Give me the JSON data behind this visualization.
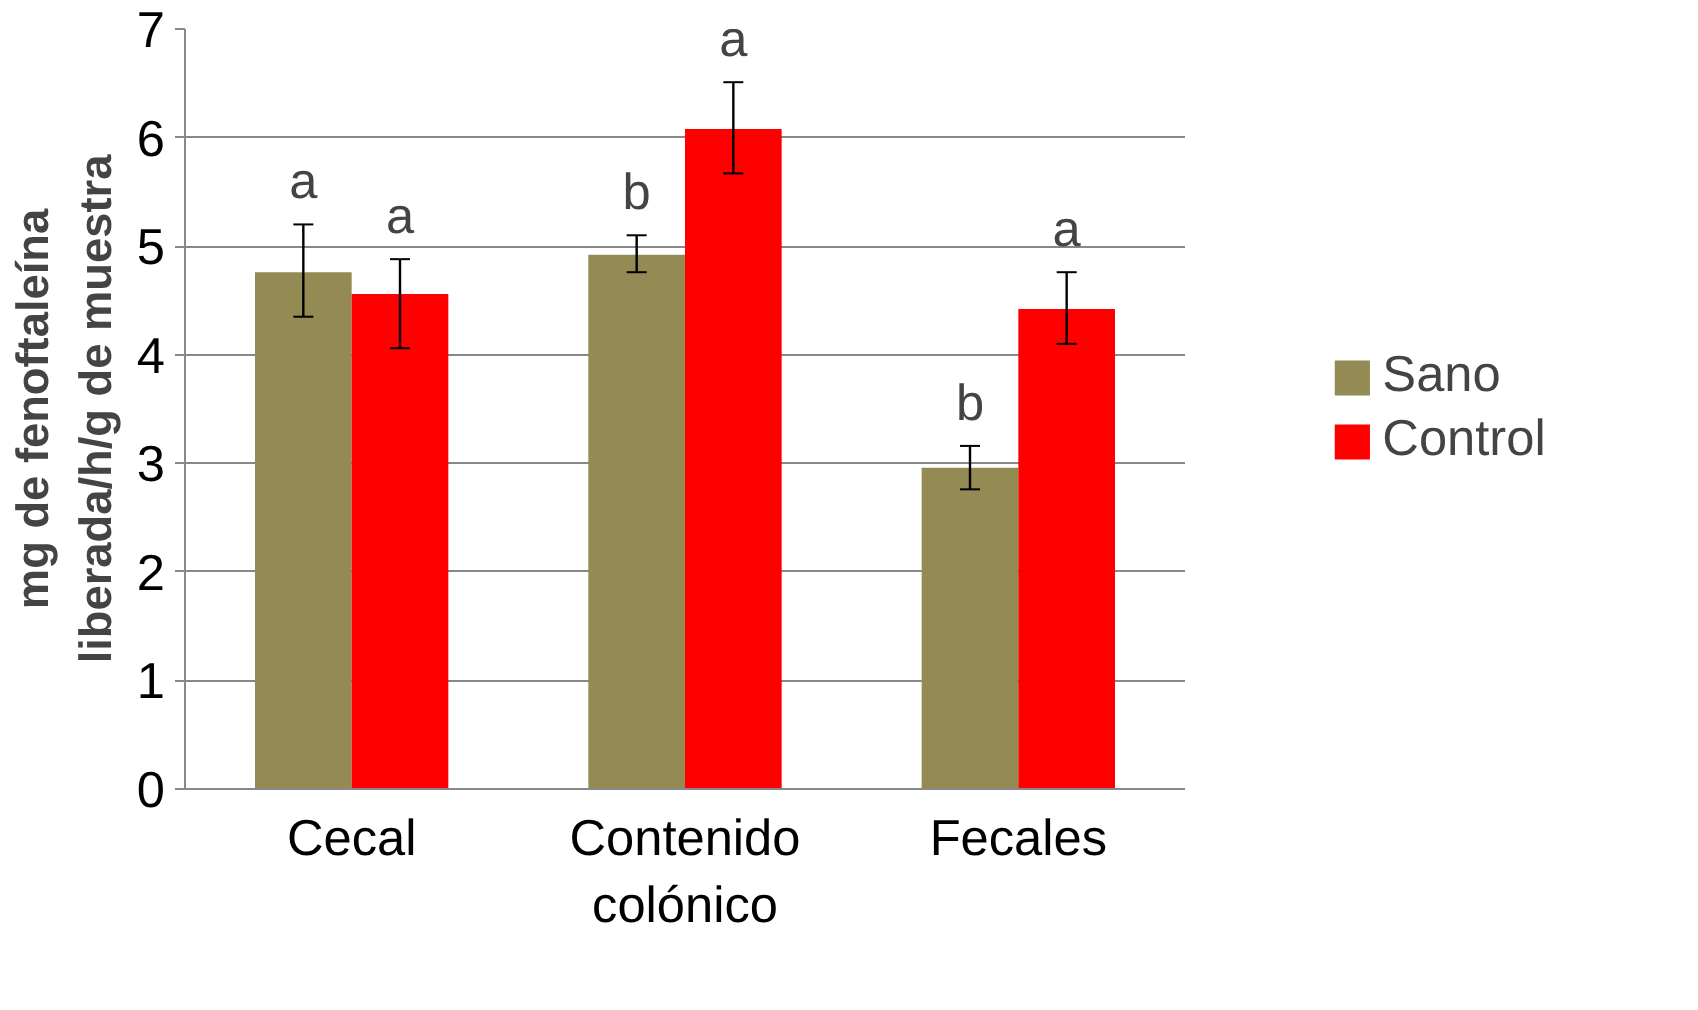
{
  "chart_data": {
    "type": "bar",
    "ylabel": "mg de fenoftaleína\nliberada/h/g de muestra",
    "categories": [
      "Cecal",
      "Contenido\ncolónico",
      "Fecales"
    ],
    "series": [
      {
        "name": "Sano",
        "color": "#948a54",
        "values": [
          4.76,
          4.92,
          2.96
        ],
        "errors": [
          [
            4.35,
            5.2
          ],
          [
            4.76,
            5.1
          ],
          [
            2.76,
            3.16
          ]
        ]
      },
      {
        "name": "Control",
        "color": "#ff0000",
        "values": [
          4.56,
          6.08,
          4.42
        ],
        "errors": [
          [
            4.06,
            4.88
          ],
          [
            5.67,
            6.51
          ],
          [
            4.1,
            4.76
          ]
        ]
      }
    ],
    "annotations": [
      "a",
      "a",
      "b",
      "a",
      "b",
      "a"
    ],
    "ylim": [
      0,
      7
    ],
    "yticks": [
      0,
      1,
      2,
      3,
      4,
      5,
      6,
      7
    ],
    "grid": "y",
    "legend": "right"
  }
}
